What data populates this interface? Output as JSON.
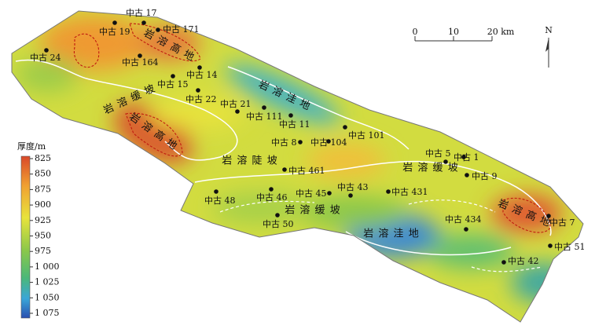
{
  "legend": {
    "title": "厚度/m",
    "ticks": [
      825,
      850,
      875,
      900,
      925,
      950,
      975,
      {
        "value": 1000,
        "label": "1 000"
      },
      {
        "value": 1025,
        "label": "1 025"
      },
      {
        "value": 1050,
        "label": "1 050"
      },
      {
        "value": 1075,
        "label": "1 075"
      }
    ]
  },
  "scale_bar": {
    "labels": [
      "0",
      "10",
      "20 km"
    ]
  },
  "north": "N",
  "wells": [
    "中古 17",
    "中古 19",
    "中古 171",
    "中古 24",
    "中古 164",
    "中古 14",
    "中古 15",
    "中古 22",
    "中古 21",
    "中古 111",
    "中古 11",
    "中古 101",
    "中古 8",
    "中古 104",
    "中古 5",
    "中古 1",
    "中古 9",
    "中古 461",
    "中古 43",
    "中古 431",
    "中古 48",
    "中古 46",
    "中古 45",
    "中古 50",
    "中古 434",
    "中古 7",
    "中古 51",
    "中古 42"
  ],
  "regions": [
    "岩 溶 高 地",
    "岩 溶 高 地",
    "岩 溶 高 地",
    "岩 溶 洼 地",
    "岩 溶 缓 坡",
    "岩 溶 缓 坡",
    "岩 溶 缓 坡",
    "岩 溶 陡 坡",
    "岩 溶 洼 地"
  ]
}
